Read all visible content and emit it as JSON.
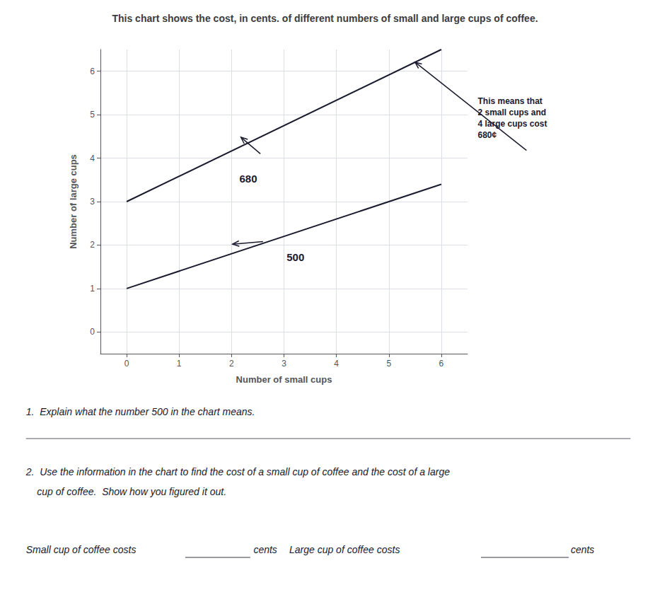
{
  "chart_data": {
    "type": "line",
    "title": "This chart shows the cost, in cents. of different numbers of small and large cups of coffee.",
    "xlabel": "Number of small cups",
    "ylabel": "Number of large cups",
    "xlim": [
      -0.5,
      6.5
    ],
    "ylim": [
      -0.5,
      6.5
    ],
    "xticks": [
      0,
      1,
      2,
      3,
      4,
      5,
      6
    ],
    "yticks": [
      0,
      1,
      2,
      3,
      4,
      5,
      6
    ],
    "grid": true,
    "color": "#1a1a2e",
    "series": [
      {
        "x": [
          0,
          6
        ],
        "values": [
          3.0,
          6.5
        ]
      },
      {
        "x": [
          0,
          6
        ],
        "values": [
          1.0,
          3.4
        ]
      }
    ],
    "annotations": [
      {
        "text": "680",
        "x": 2.15,
        "y": 3.65,
        "arrow_from": [
          2.55,
          4.1
        ],
        "arrow_to": [
          2.18,
          4.48
        ]
      },
      {
        "text": "500",
        "x": 3.05,
        "y": 1.85,
        "arrow_from": [
          2.6,
          2.08
        ],
        "arrow_to": [
          2.02,
          2.02
        ]
      },
      {
        "text": "This means that\n2 small cups and\n4 large cups cost\n680¢",
        "arrow_to": [
          5.5,
          6.208333333333333
        ]
      }
    ],
    "footer": [
      "1.  Explain what the number 500 in the chart means.",
      "2.  Use the information in the chart to find the cost of a small cup of coffee and the cost of a large",
      "    cup of coffee.  Show how you figured it out.",
      [
        "Small cup of coffee costs",
        "cents",
        "Large cup of coffee costs",
        "cents"
      ]
    ]
  }
}
